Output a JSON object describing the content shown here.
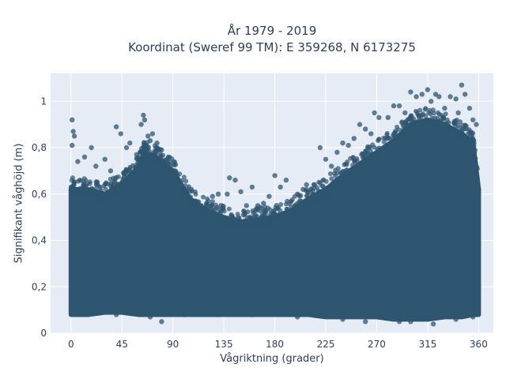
{
  "chart_data": {
    "type": "scatter",
    "title_lines": [
      "År 1979 - 2019",
      "Koordinat (Sweref 99 TM): E 359268, N 6173275"
    ],
    "xlabel": "Vågriktning (grader)",
    "ylabel": "Signifikant våghöjd (m)",
    "xlim": [
      -18,
      373
    ],
    "ylim": [
      0,
      1.12
    ],
    "x_ticks": [
      0,
      45,
      90,
      135,
      180,
      225,
      270,
      315,
      360
    ],
    "x_tick_labels": [
      "0",
      "45",
      "90",
      "135",
      "180",
      "225",
      "270",
      "315",
      "360"
    ],
    "y_ticks": [
      0,
      0.2,
      0.4,
      0.6,
      0.8,
      1
    ],
    "y_tick_labels": [
      "0",
      "0,2",
      "0,4",
      "0,6",
      "0,8",
      "1"
    ],
    "grid": true,
    "marker_color": "#2f5670",
    "plot_background": "#e5ecf6",
    "series": [
      {
        "points": [
          [
            1,
            0.92
          ],
          [
            2,
            0.87
          ],
          [
            1,
            0.81
          ],
          [
            3,
            0.85
          ],
          [
            6,
            0.74
          ],
          [
            12,
            0.76
          ],
          [
            18,
            0.8
          ],
          [
            22,
            0.72
          ],
          [
            30,
            0.75
          ],
          [
            35,
            0.7
          ],
          [
            40,
            0.89
          ],
          [
            44,
            0.86
          ],
          [
            49,
            0.8
          ],
          [
            52,
            0.82
          ],
          [
            58,
            0.77
          ],
          [
            62,
            0.9
          ],
          [
            64,
            0.94
          ],
          [
            65,
            0.92
          ],
          [
            68,
            0.85
          ],
          [
            70,
            0.83
          ],
          [
            72,
            0.86
          ],
          [
            76,
            0.82
          ],
          [
            80,
            0.79
          ],
          [
            85,
            0.74
          ],
          [
            88,
            0.72
          ],
          [
            92,
            0.7
          ],
          [
            95,
            0.66
          ],
          [
            100,
            0.62
          ],
          [
            105,
            0.58
          ],
          [
            110,
            0.57
          ],
          [
            115,
            0.55
          ],
          [
            120,
            0.56
          ],
          [
            125,
            0.59
          ],
          [
            130,
            0.6
          ],
          [
            138,
            0.6
          ],
          [
            140,
            0.67
          ],
          [
            145,
            0.66
          ],
          [
            150,
            0.61
          ],
          [
            155,
            0.55
          ],
          [
            160,
            0.63
          ],
          [
            165,
            0.55
          ],
          [
            170,
            0.56
          ],
          [
            175,
            0.59
          ],
          [
            180,
            0.68
          ],
          [
            185,
            0.63
          ],
          [
            190,
            0.66
          ],
          [
            200,
            0.6
          ],
          [
            205,
            0.62
          ],
          [
            208,
            0.64
          ],
          [
            215,
            0.64
          ],
          [
            220,
            0.8
          ],
          [
            225,
            0.75
          ],
          [
            230,
            0.72
          ],
          [
            235,
            0.78
          ],
          [
            240,
            0.82
          ],
          [
            245,
            0.81
          ],
          [
            250,
            0.84
          ],
          [
            255,
            0.9
          ],
          [
            260,
            0.88
          ],
          [
            265,
            0.86
          ],
          [
            268,
            0.95
          ],
          [
            272,
            0.93
          ],
          [
            280,
            0.93
          ],
          [
            285,
            0.98
          ],
          [
            290,
            0.98
          ],
          [
            295,
            0.95
          ],
          [
            300,
            1.04
          ],
          [
            305,
            1.02
          ],
          [
            310,
            1.03
          ],
          [
            315,
            1.05
          ],
          [
            318,
            1.0
          ],
          [
            322,
            1.03
          ],
          [
            325,
            1.02
          ],
          [
            330,
            0.97
          ],
          [
            335,
            1.02
          ],
          [
            340,
            1.01
          ],
          [
            342,
            0.95
          ],
          [
            345,
            1.07
          ],
          [
            348,
            1.03
          ],
          [
            352,
            0.97
          ],
          [
            355,
            0.92
          ],
          [
            358,
            0.9
          ],
          [
            360,
            0.62
          ],
          [
            359,
            0.65
          ],
          [
            357,
            0.73
          ],
          [
            5,
            0.1
          ],
          [
            20,
            0.09
          ],
          [
            40,
            0.08
          ],
          [
            70,
            0.07
          ],
          [
            80,
            0.05
          ],
          [
            100,
            0.08
          ],
          [
            130,
            0.08
          ],
          [
            160,
            0.08
          ],
          [
            200,
            0.07
          ],
          [
            240,
            0.06
          ],
          [
            260,
            0.05
          ],
          [
            290,
            0.05
          ],
          [
            300,
            0.05
          ],
          [
            320,
            0.04
          ],
          [
            340,
            0.06
          ],
          [
            355,
            0.07
          ]
        ]
      }
    ],
    "dense_band": {
      "x": [
        0,
        15,
        30,
        45,
        60,
        65,
        75,
        90,
        105,
        120,
        135,
        150,
        165,
        180,
        195,
        210,
        225,
        240,
        255,
        270,
        285,
        300,
        315,
        330,
        345,
        355,
        360
      ],
      "y_low": [
        0.08,
        0.08,
        0.09,
        0.09,
        0.08,
        0.08,
        0.08,
        0.08,
        0.08,
        0.08,
        0.08,
        0.08,
        0.08,
        0.08,
        0.08,
        0.08,
        0.07,
        0.07,
        0.07,
        0.07,
        0.06,
        0.06,
        0.06,
        0.07,
        0.07,
        0.08,
        0.08
      ],
      "y_high": [
        0.62,
        0.62,
        0.6,
        0.64,
        0.72,
        0.78,
        0.76,
        0.7,
        0.58,
        0.53,
        0.5,
        0.48,
        0.49,
        0.5,
        0.53,
        0.58,
        0.62,
        0.68,
        0.73,
        0.78,
        0.83,
        0.9,
        0.92,
        0.9,
        0.86,
        0.82,
        0.62
      ]
    }
  }
}
